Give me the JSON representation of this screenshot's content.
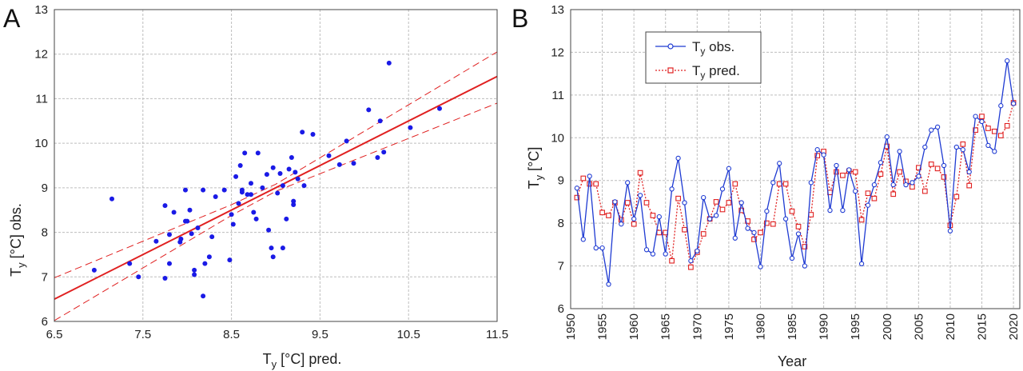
{
  "figure": {
    "panel_a": "A",
    "panel_b": "B"
  },
  "colors": {
    "points": "#1a1ae6",
    "fit": "#e02020",
    "obs": "#1e3ad2",
    "pred": "#e02020",
    "grid": "#bdbdbd"
  },
  "chart_data": [
    {
      "type": "scatter",
      "panel": "A",
      "xlabel_main": "T",
      "xlabel_sub": "y",
      "xlabel_rest": " [°C] pred.",
      "ylabel_main": "T",
      "ylabel_sub": "y",
      "ylabel_rest": " [°C] obs.",
      "xlim": [
        6.5,
        11.5
      ],
      "ylim": [
        6,
        13
      ],
      "xticks": [
        "6.5",
        "7.5",
        "8.5",
        "9.5",
        "10.5",
        "11.5"
      ],
      "yticks": [
        "6",
        "7",
        "8",
        "9",
        "10",
        "11",
        "12",
        "13"
      ],
      "grid": true,
      "points": [
        [
          6.95,
          7.15
        ],
        [
          7.15,
          8.75
        ],
        [
          7.35,
          7.3
        ],
        [
          7.45,
          7.0
        ],
        [
          7.65,
          7.8
        ],
        [
          7.75,
          8.6
        ],
        [
          7.75,
          6.97
        ],
        [
          7.8,
          7.95
        ],
        [
          7.8,
          7.3
        ],
        [
          7.85,
          8.45
        ],
        [
          7.92,
          7.78
        ],
        [
          7.93,
          7.85
        ],
        [
          7.98,
          8.95
        ],
        [
          7.98,
          8.25
        ],
        [
          8.0,
          8.25
        ],
        [
          8.03,
          8.5
        ],
        [
          8.05,
          7.97
        ],
        [
          8.08,
          7.15
        ],
        [
          8.08,
          7.05
        ],
        [
          8.12,
          8.1
        ],
        [
          8.18,
          6.57
        ],
        [
          8.18,
          8.95
        ],
        [
          8.2,
          7.3
        ],
        [
          8.25,
          7.45
        ],
        [
          8.28,
          7.9
        ],
        [
          8.32,
          8.8
        ],
        [
          8.42,
          8.95
        ],
        [
          8.48,
          7.38
        ],
        [
          8.5,
          8.4
        ],
        [
          8.52,
          8.18
        ],
        [
          8.55,
          9.25
        ],
        [
          8.58,
          8.65
        ],
        [
          8.6,
          9.5
        ],
        [
          8.62,
          8.95
        ],
        [
          8.62,
          8.9
        ],
        [
          8.65,
          9.78
        ],
        [
          8.68,
          8.85
        ],
        [
          8.72,
          9.1
        ],
        [
          8.72,
          8.85
        ],
        [
          8.75,
          8.45
        ],
        [
          8.78,
          8.3
        ],
        [
          8.8,
          9.78
        ],
        [
          8.85,
          9.0
        ],
        [
          8.9,
          9.3
        ],
        [
          8.92,
          8.05
        ],
        [
          8.95,
          7.65
        ],
        [
          8.97,
          9.45
        ],
        [
          8.97,
          7.45
        ],
        [
          9.02,
          8.88
        ],
        [
          9.05,
          9.32
        ],
        [
          9.08,
          9.05
        ],
        [
          9.08,
          7.65
        ],
        [
          9.12,
          8.3
        ],
        [
          9.15,
          9.42
        ],
        [
          9.18,
          9.68
        ],
        [
          9.2,
          8.7
        ],
        [
          9.2,
          8.62
        ],
        [
          9.22,
          9.35
        ],
        [
          9.25,
          9.2
        ],
        [
          9.3,
          10.25
        ],
        [
          9.32,
          9.05
        ],
        [
          9.42,
          10.2
        ],
        [
          9.6,
          9.72
        ],
        [
          9.72,
          9.52
        ],
        [
          9.8,
          10.05
        ],
        [
          9.88,
          9.55
        ],
        [
          10.05,
          10.75
        ],
        [
          10.15,
          9.68
        ],
        [
          10.18,
          10.5
        ],
        [
          10.22,
          9.8
        ],
        [
          10.28,
          11.8
        ],
        [
          10.52,
          10.35
        ],
        [
          10.85,
          10.78
        ]
      ],
      "fit_line": [
        [
          6.5,
          6.5
        ],
        [
          11.5,
          11.5
        ]
      ],
      "ci_upper": [
        [
          6.5,
          6.98
        ],
        [
          8.5,
          8.62
        ],
        [
          9.0,
          9.08
        ],
        [
          11.5,
          12.05
        ]
      ],
      "ci_lower": [
        [
          6.5,
          6.02
        ],
        [
          8.5,
          8.38
        ],
        [
          9.0,
          8.92
        ],
        [
          11.5,
          10.9
        ]
      ]
    },
    {
      "type": "line",
      "panel": "B",
      "xlabel": "Year",
      "ylabel_main": "T",
      "ylabel_sub": "y",
      "ylabel_rest": " [°C]",
      "xlim": [
        1950,
        2021
      ],
      "ylim": [
        6,
        13
      ],
      "xticks": [
        "1950",
        "1955",
        "1960",
        "1965",
        "1970",
        "1975",
        "1980",
        "1985",
        "1990",
        "1995",
        "2000",
        "2005",
        "2010",
        "2015",
        "2020"
      ],
      "yticks": [
        "6",
        "7",
        "8",
        "9",
        "10",
        "11",
        "12",
        "13"
      ],
      "grid": true,
      "legend_position": "top-left",
      "series": [
        {
          "name_main": "T",
          "name_sub": "y",
          "name_rest": " obs.",
          "style": "solid-circle",
          "x_start": 1951,
          "values": [
            8.82,
            7.62,
            9.1,
            7.42,
            7.42,
            6.57,
            8.5,
            7.98,
            8.95,
            8.1,
            8.65,
            7.38,
            7.28,
            8.15,
            7.28,
            8.8,
            9.52,
            8.48,
            7.12,
            7.35,
            8.6,
            8.1,
            8.18,
            8.8,
            9.28,
            7.65,
            8.48,
            7.88,
            7.78,
            6.98,
            8.28,
            8.95,
            9.4,
            8.1,
            7.18,
            7.75,
            7.0,
            8.95,
            9.72,
            9.6,
            8.3,
            9.35,
            8.3,
            9.25,
            8.75,
            7.05,
            8.42,
            8.9,
            9.42,
            10.02,
            8.9,
            9.68,
            8.9,
            8.95,
            9.1,
            9.78,
            10.18,
            10.25,
            9.35,
            7.82,
            9.78,
            9.72,
            9.2,
            10.5,
            10.38,
            9.82,
            9.68,
            10.75,
            11.8,
            10.8
          ]
        },
        {
          "name_main": "T",
          "name_sub": "y",
          "name_rest": " pred.",
          "style": "dotted-square",
          "x_start": 1951,
          "values": [
            8.6,
            9.05,
            8.92,
            8.92,
            8.25,
            8.18,
            8.48,
            8.08,
            8.48,
            7.98,
            9.18,
            8.48,
            8.18,
            7.78,
            7.78,
            7.12,
            8.58,
            7.85,
            6.97,
            7.32,
            7.75,
            8.1,
            8.5,
            8.32,
            8.48,
            8.92,
            8.3,
            8.05,
            7.62,
            7.78,
            8.0,
            7.98,
            8.92,
            8.92,
            8.28,
            7.92,
            7.45,
            8.2,
            9.58,
            9.68,
            8.72,
            9.2,
            9.12,
            9.22,
            9.2,
            8.08,
            8.7,
            8.58,
            9.15,
            9.8,
            8.68,
            9.2,
            8.98,
            8.85,
            9.3,
            8.75,
            9.38,
            9.28,
            9.08,
            7.95,
            8.62,
            9.85,
            8.88,
            10.18,
            10.5,
            10.22,
            10.15,
            10.05,
            10.28,
            10.82
          ]
        }
      ]
    }
  ]
}
